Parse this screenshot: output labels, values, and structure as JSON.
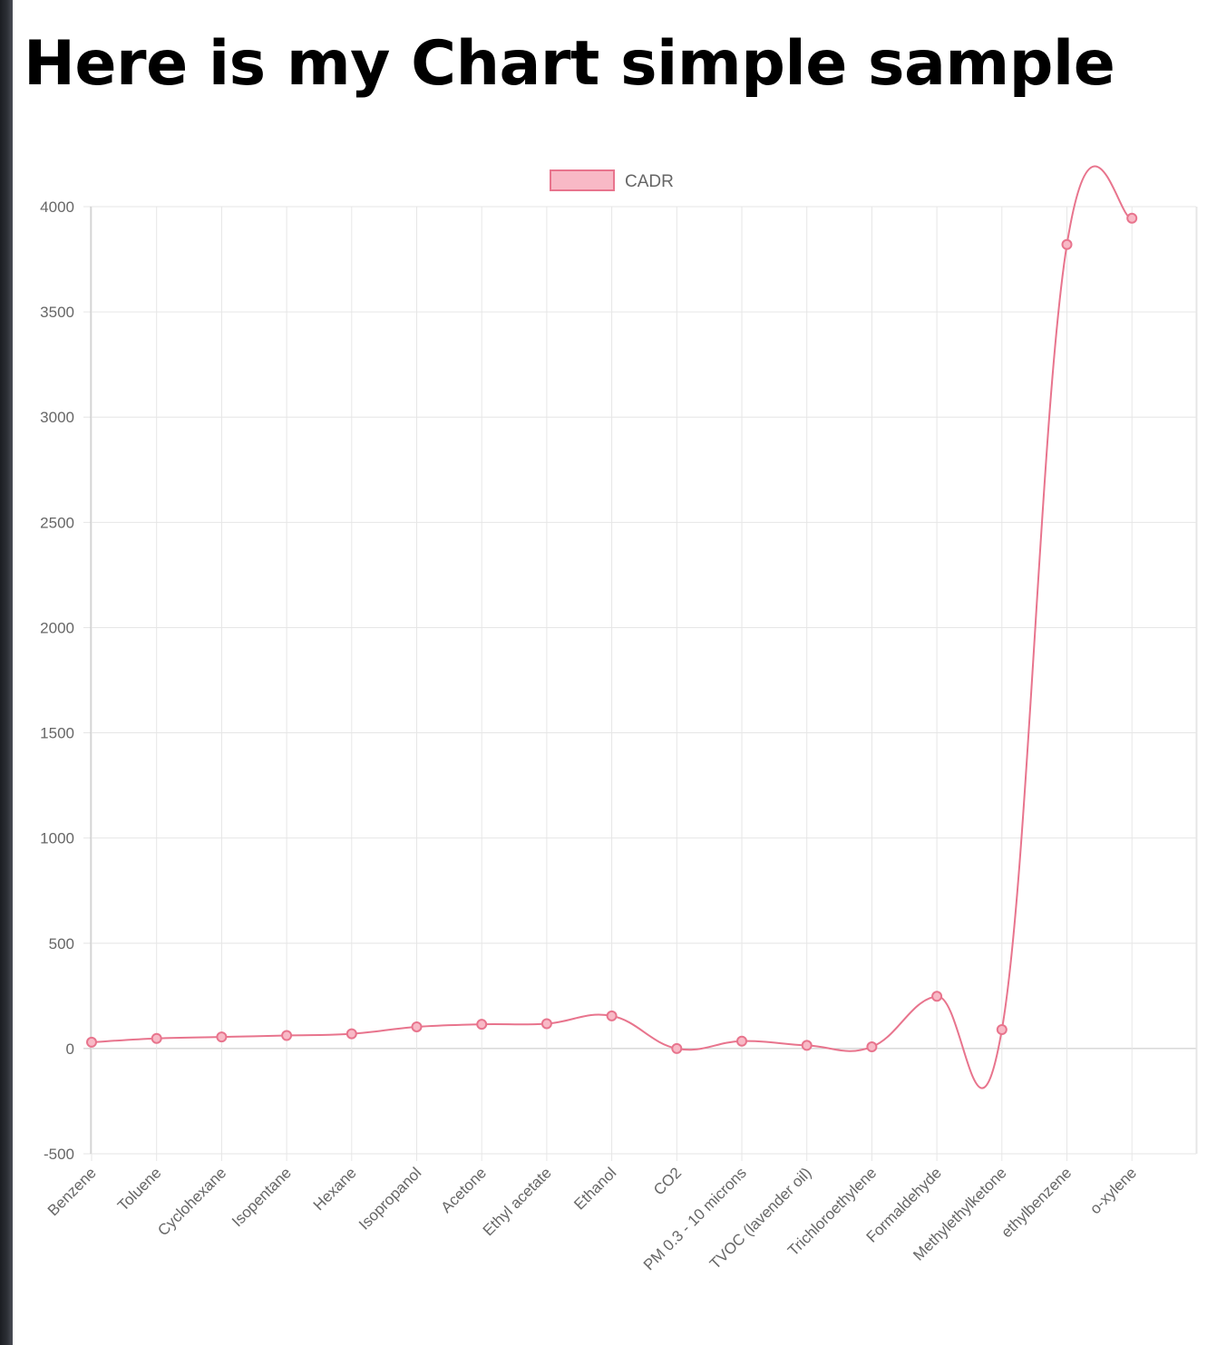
{
  "page": {
    "title": "Here is my Chart simple sample"
  },
  "chart_data": {
    "type": "line",
    "categories": [
      "Benzene",
      "Toluene",
      "Cyclohexane",
      "Isopentane",
      "Hexane",
      "Isopropanol",
      "Acetone",
      "Ethyl acetate",
      "Ethanol",
      "CO2",
      "PM 0.3 - 10 microns",
      "TVOC (lavender oil)",
      "Trichloroethylene",
      "Formaldehyde",
      "Methylethylketone",
      "ethylbenzene",
      "o-xylene"
    ],
    "series": [
      {
        "name": "CADR",
        "values": [
          30,
          48,
          55,
          62,
          70,
          103,
          115,
          118,
          155,
          0,
          35,
          15,
          8,
          248,
          90,
          3820,
          3945
        ],
        "color": "#e8748d",
        "fill": "#f8b9c6"
      }
    ],
    "xlabel": "",
    "ylabel": "",
    "ylim": [
      -500,
      4000
    ],
    "yticks": [
      -500,
      0,
      500,
      1000,
      1500,
      2000,
      2500,
      3000,
      3500,
      4000
    ],
    "grid": true,
    "legend": "top-center",
    "grid_color": "#e6e6e6",
    "zero_line_color": "#c4c4c4"
  }
}
